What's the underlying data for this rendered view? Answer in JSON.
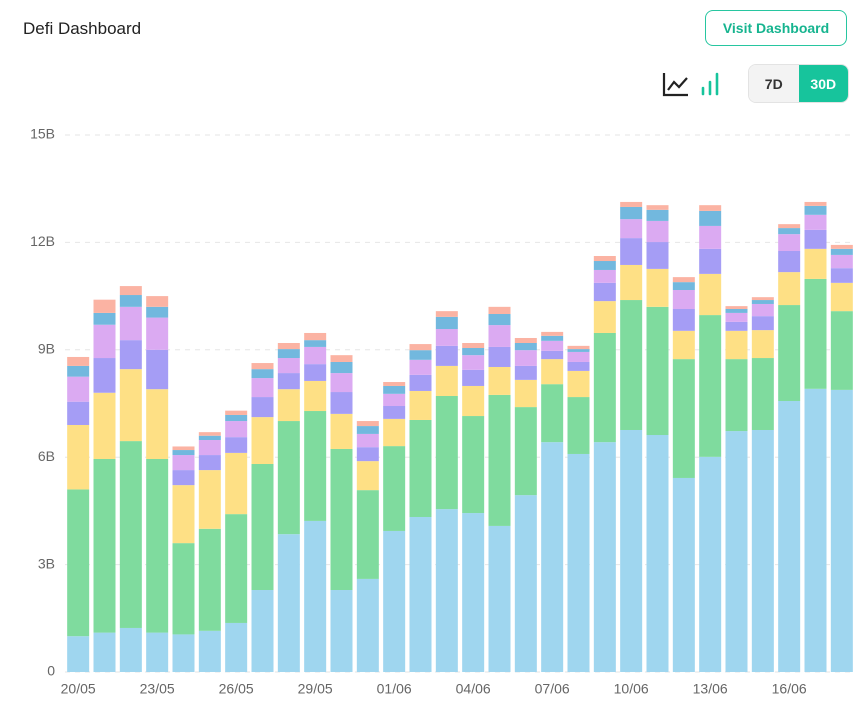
{
  "header": {
    "title": "Defi Dashboard",
    "button": "Visit Dashboard",
    "ranges": [
      "7D",
      "30D"
    ]
  },
  "chart_data": {
    "type": "stacked_bar",
    "categories": [
      "20/05",
      null,
      null,
      "23/05",
      null,
      null,
      "26/05",
      null,
      null,
      "29/05",
      null,
      null,
      "01/06",
      null,
      null,
      "04/06",
      null,
      null,
      "07/06",
      null,
      null,
      "10/06",
      null,
      null,
      "13/06",
      null,
      null,
      "16/06",
      null,
      null
    ],
    "series": [
      {
        "color": "#9fd6ef",
        "values": [
          1.0,
          1.1,
          1.23,
          1.1,
          1.05,
          1.15,
          1.37,
          2.29,
          3.85,
          4.22,
          2.29,
          2.6,
          3.94,
          4.33,
          4.55,
          4.44,
          4.08,
          4.94,
          6.42,
          6.09,
          6.42,
          6.76,
          6.62,
          5.42,
          6.01,
          6.73,
          6.76,
          7.57,
          7.91,
          7.88
        ]
      },
      {
        "color": "#7fdb9e",
        "values": [
          4.1,
          4.85,
          5.22,
          4.85,
          2.55,
          2.85,
          3.04,
          3.52,
          3.16,
          3.07,
          3.94,
          2.48,
          2.37,
          2.71,
          3.16,
          2.71,
          3.66,
          2.46,
          1.62,
          1.59,
          3.05,
          3.63,
          3.58,
          3.32,
          3.96,
          2.01,
          2.01,
          2.68,
          3.07,
          2.2
        ]
      },
      {
        "color": "#fee085",
        "values": [
          1.8,
          1.85,
          2.01,
          1.95,
          1.62,
          1.64,
          1.71,
          1.31,
          0.89,
          0.84,
          0.98,
          0.81,
          0.76,
          0.81,
          0.84,
          0.84,
          0.78,
          0.76,
          0.7,
          0.73,
          0.89,
          0.98,
          1.06,
          0.79,
          1.15,
          0.79,
          0.78,
          0.92,
          0.84,
          0.79
        ]
      },
      {
        "color": "#a59df5",
        "values": [
          0.65,
          0.97,
          0.81,
          1.1,
          0.42,
          0.42,
          0.44,
          0.56,
          0.45,
          0.47,
          0.61,
          0.39,
          0.36,
          0.45,
          0.56,
          0.45,
          0.56,
          0.39,
          0.23,
          0.25,
          0.51,
          0.75,
          0.75,
          0.61,
          0.7,
          0.25,
          0.39,
          0.59,
          0.53,
          0.41
        ]
      },
      {
        "color": "#dbaaf2",
        "values": [
          0.7,
          0.93,
          0.93,
          0.9,
          0.42,
          0.42,
          0.45,
          0.53,
          0.42,
          0.48,
          0.53,
          0.37,
          0.34,
          0.42,
          0.47,
          0.41,
          0.61,
          0.44,
          0.28,
          0.28,
          0.36,
          0.53,
          0.59,
          0.53,
          0.64,
          0.25,
          0.34,
          0.47,
          0.42,
          0.37
        ]
      },
      {
        "color": "#72b8de",
        "values": [
          0.3,
          0.33,
          0.33,
          0.3,
          0.14,
          0.12,
          0.17,
          0.25,
          0.25,
          0.19,
          0.31,
          0.22,
          0.22,
          0.27,
          0.34,
          0.2,
          0.31,
          0.2,
          0.14,
          0.08,
          0.25,
          0.34,
          0.31,
          0.22,
          0.42,
          0.11,
          0.11,
          0.17,
          0.25,
          0.17
        ]
      },
      {
        "color": "#fbb3a3",
        "values": [
          0.25,
          0.37,
          0.25,
          0.3,
          0.1,
          0.1,
          0.12,
          0.17,
          0.17,
          0.2,
          0.19,
          0.14,
          0.11,
          0.17,
          0.16,
          0.14,
          0.2,
          0.14,
          0.11,
          0.09,
          0.14,
          0.14,
          0.13,
          0.14,
          0.16,
          0.08,
          0.08,
          0.11,
          0.11,
          0.11
        ]
      }
    ],
    "ylim": [
      0,
      15
    ],
    "yticks": [
      0,
      {
        "value": 3,
        "label": "3B"
      },
      {
        "value": 6,
        "label": "6B"
      },
      {
        "value": 9,
        "label": "9B"
      },
      {
        "value": 12,
        "label": "12B"
      },
      {
        "value": 15,
        "label": "15B"
      }
    ],
    "grid": true
  }
}
